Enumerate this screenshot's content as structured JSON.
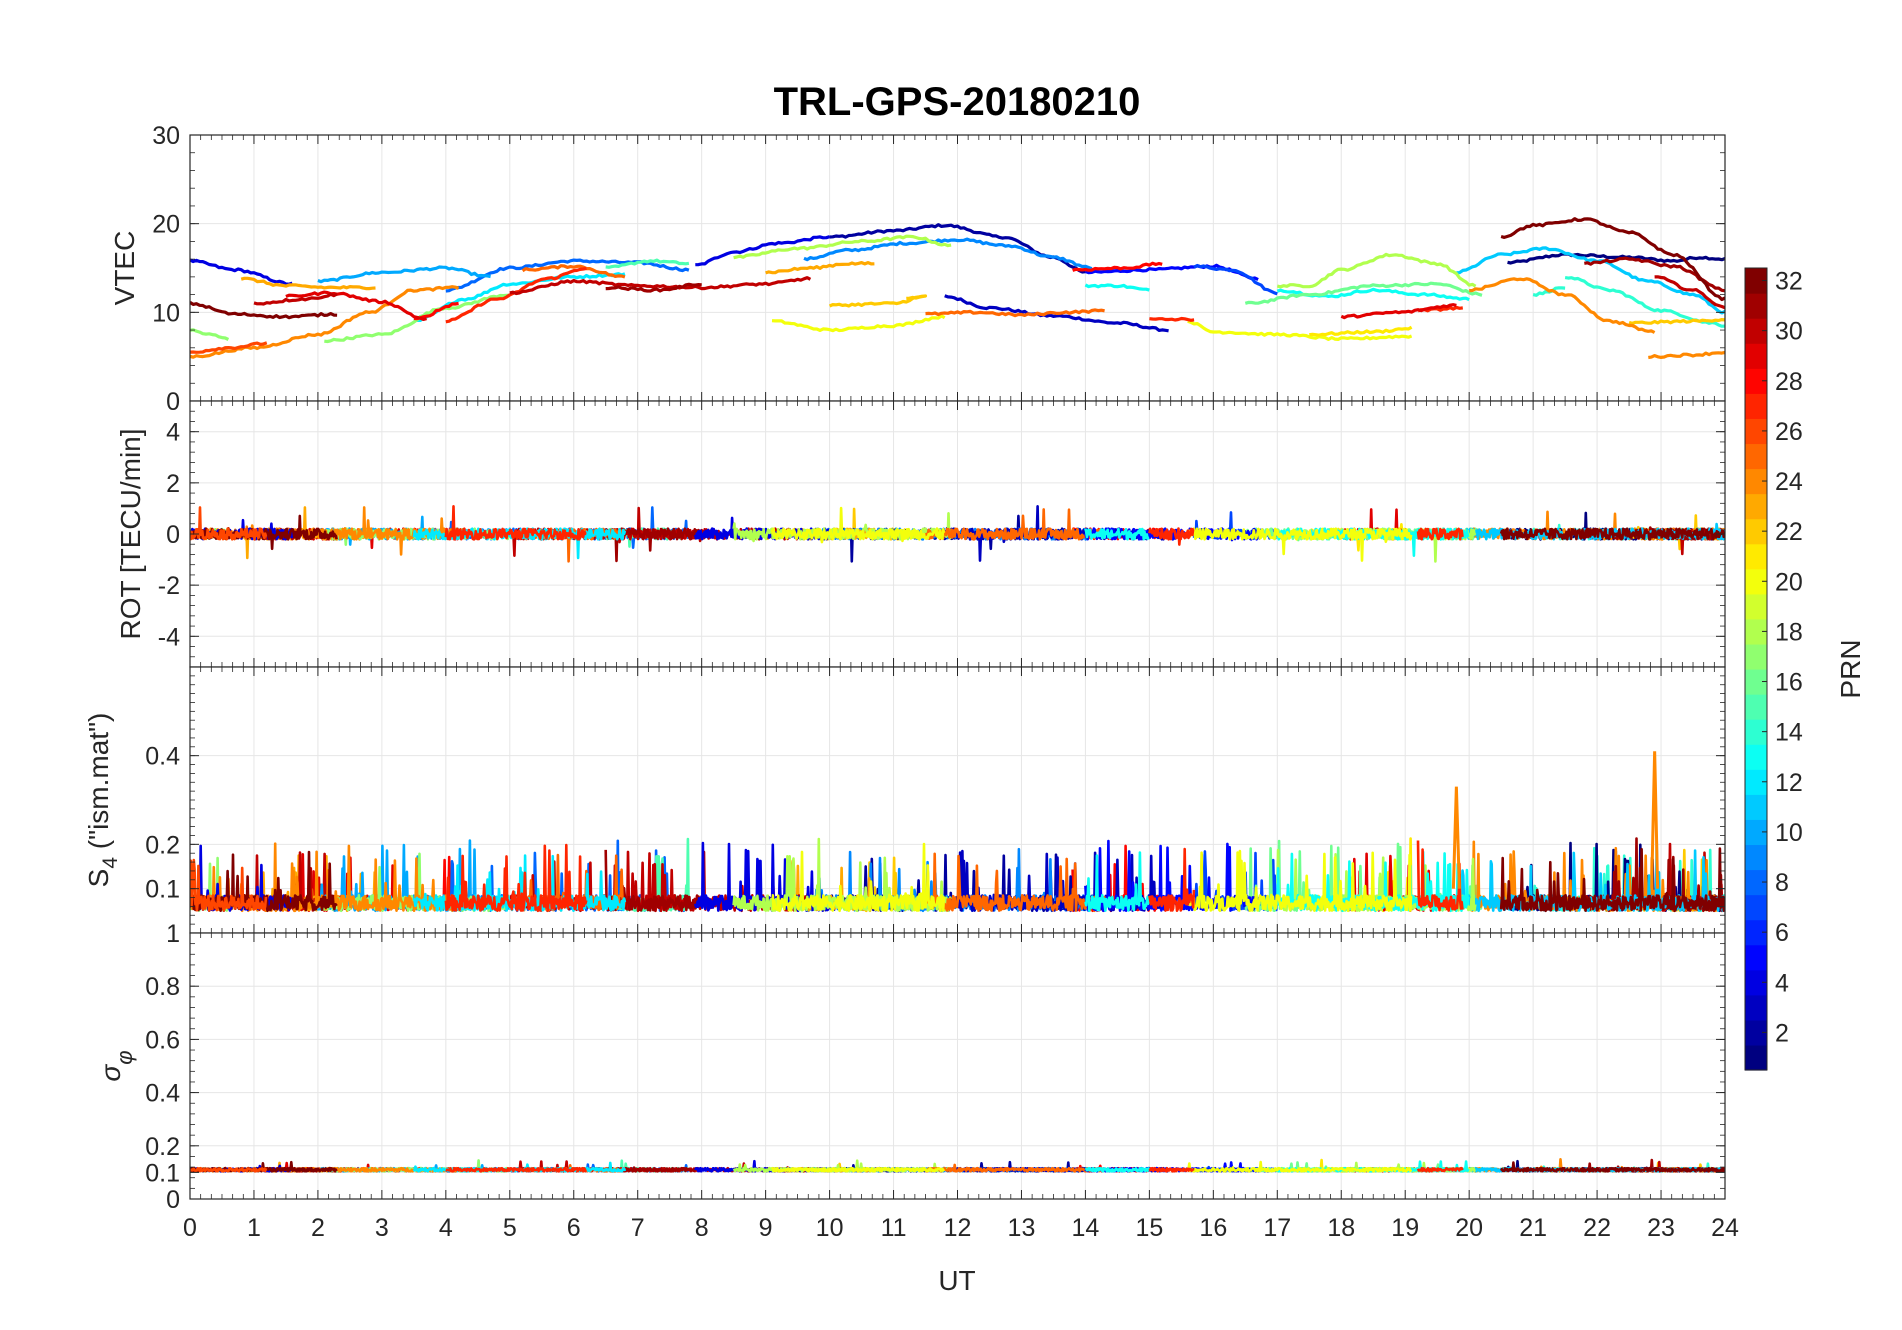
{
  "chart_data": {
    "type": "line",
    "title": "TRL-GPS-20180210",
    "xlabel": "UT",
    "xlim": [
      0,
      24
    ],
    "x_ticks": [
      0,
      1,
      2,
      3,
      4,
      5,
      6,
      7,
      8,
      9,
      10,
      11,
      12,
      13,
      14,
      15,
      16,
      17,
      18,
      19,
      20,
      21,
      22,
      23,
      24
    ],
    "grid": true,
    "colorbar": {
      "label": "PRN",
      "colormap": "jet",
      "range": [
        1,
        32
      ],
      "ticks": [
        2,
        4,
        6,
        8,
        10,
        12,
        14,
        16,
        18,
        20,
        22,
        24,
        26,
        28,
        30,
        32
      ]
    },
    "panels": [
      {
        "id": "vtec",
        "ylabel": "VTEC",
        "ylim": [
          0,
          30
        ],
        "y_ticks": [
          0,
          10,
          20,
          30
        ],
        "series": [
          {
            "prn": 1,
            "x": [
              20.6,
              21.5,
              22.5,
              23.2,
              23.6,
              24
            ],
            "y": [
              15.6,
              16.5,
              16.2,
              15.8,
              16.2,
              16.0
            ]
          },
          {
            "prn": 2,
            "x": [
              10.0,
              11.0,
              11.8,
              12.7,
              13.5,
              14.0
            ],
            "y": [
              18.5,
              19.2,
              19.8,
              18.5,
              16.2,
              14.5
            ]
          },
          {
            "prn": 3,
            "x": [
              11.8,
              12.5,
              13.5,
              14.5,
              15.3
            ],
            "y": [
              11.8,
              10.5,
              9.6,
              8.8,
              8.0
            ]
          },
          {
            "prn": 4,
            "x": [
              0,
              0.7,
              1.6
            ],
            "y": [
              15.8,
              14.8,
              13.2
            ]
          },
          {
            "prn": 4,
            "x": [
              7.9,
              8.5,
              9.2,
              10.0
            ],
            "y": [
              15.3,
              16.8,
              17.8,
              18.5
            ]
          },
          {
            "prn": 5,
            "x": [
              14.0,
              15.0,
              16.0,
              16.7
            ],
            "y": [
              14.5,
              14.8,
              15.2,
              13.8
            ]
          },
          {
            "prn": 7,
            "x": [
              15.7,
              16.3,
              17.0
            ],
            "y": [
              15.2,
              14.8,
              12.2
            ]
          },
          {
            "prn": 8,
            "x": [
              4.0,
              5.0,
              6.0,
              7.0,
              7.8
            ],
            "y": [
              12.5,
              15.0,
              15.8,
              15.6,
              14.8
            ]
          },
          {
            "prn": 9,
            "x": [
              9.6,
              10.3,
              11.2,
              12.0,
              12.8,
              13.5,
              14.1
            ],
            "y": [
              16.0,
              17.0,
              17.8,
              18.2,
              17.5,
              16.2,
              15.0
            ]
          },
          {
            "prn": 10,
            "x": [
              2.0,
              3.0,
              4.0,
              4.7
            ],
            "y": [
              13.5,
              14.5,
              15.0,
              14.0
            ]
          },
          {
            "prn": 11,
            "x": [
              19.8,
              20.5,
              21.2,
              22.0,
              22.8,
              23.5,
              24
            ],
            "y": [
              14.5,
              16.5,
              17.2,
              15.8,
              13.5,
              12.0,
              10.0
            ]
          },
          {
            "prn": 12,
            "x": [
              3.5,
              4.3,
              5.0,
              6.0,
              6.8
            ],
            "y": [
              9.0,
              11.5,
              13.2,
              14.0,
              14.3
            ]
          },
          {
            "prn": 13,
            "x": [
              14.0,
              14.5,
              15.0
            ],
            "y": [
              13.0,
              13.0,
              12.5
            ]
          },
          {
            "prn": 13,
            "x": [
              17.0,
              17.8,
              18.5,
              19.3,
              20.0
            ],
            "y": [
              12.5,
              11.8,
              12.5,
              12.0,
              11.5
            ]
          },
          {
            "prn": 14,
            "x": [
              21.5,
              22.2,
              23.0,
              23.8,
              24
            ],
            "y": [
              14.0,
              12.5,
              10.2,
              8.8,
              8.5
            ]
          },
          {
            "prn": 14,
            "x": [
              21.0,
              21.5
            ],
            "y": [
              12.0,
              12.8
            ]
          },
          {
            "prn": 15,
            "x": [
              6.5,
              7.2,
              7.8
            ],
            "y": [
              15.0,
              15.8,
              15.5
            ]
          },
          {
            "prn": 16,
            "x": [
              16.5,
              17.5,
              18.5,
              19.5,
              20.2
            ],
            "y": [
              11.0,
              12.0,
              13.0,
              13.2,
              12.0
            ]
          },
          {
            "prn": 17,
            "x": [
              0,
              0.3,
              0.6
            ],
            "y": [
              8.0,
              7.5,
              7.0
            ]
          },
          {
            "prn": 17,
            "x": [
              2.1,
              3.0,
              4.0,
              5.0
            ],
            "y": [
              6.8,
              7.5,
              10.5,
              12.0
            ]
          },
          {
            "prn": 18,
            "x": [
              8.5,
              9.5,
              10.5,
              11.3,
              11.9
            ],
            "y": [
              16.2,
              17.2,
              18.0,
              18.5,
              17.5
            ]
          },
          {
            "prn": 18,
            "x": [
              17.0,
              17.5,
              18.0,
              18.8,
              19.5,
              20.1
            ],
            "y": [
              13.0,
              13.0,
              14.8,
              16.5,
              15.5,
              13.0
            ]
          },
          {
            "prn": 20,
            "x": [
              9.1,
              10.0,
              11.0,
              11.8
            ],
            "y": [
              9.0,
              8.0,
              8.5,
              9.5
            ]
          },
          {
            "prn": 20,
            "x": [
              15.6,
              16.0,
              17.0,
              18.0,
              19.1
            ],
            "y": [
              9.0,
              7.8,
              7.5,
              7.0,
              7.3
            ]
          },
          {
            "prn": 21,
            "x": [
              17.5,
              18.5,
              19.1
            ],
            "y": [
              7.5,
              7.8,
              8.2
            ]
          },
          {
            "prn": 22,
            "x": [
              10.0,
              11.0,
              11.5,
              11.2
            ],
            "y": [
              10.8,
              11.0,
              11.8,
              11.5
            ]
          },
          {
            "prn": 22,
            "x": [
              22.5,
              23.5,
              24
            ],
            "y": [
              8.8,
              9.0,
              9.2
            ]
          },
          {
            "prn": 23,
            "x": [
              0.8,
              1.5,
              2.2,
              2.9
            ],
            "y": [
              13.8,
              13.0,
              12.8,
              12.8
            ]
          },
          {
            "prn": 23,
            "x": [
              9.0,
              9.7,
              10.3,
              10.7
            ],
            "y": [
              14.5,
              15.0,
              15.5,
              15.5
            ]
          },
          {
            "prn": 24,
            "x": [
              0,
              1.0,
              2.0,
              2.8,
              3.5,
              4.2
            ],
            "y": [
              5.0,
              6.0,
              7.5,
              10.0,
              12.5,
              12.8
            ]
          },
          {
            "prn": 24,
            "x": [
              20.0,
              20.8,
              21.5,
              22.2,
              22.9
            ],
            "y": [
              12.5,
              13.8,
              12.0,
              9.0,
              7.8
            ]
          },
          {
            "prn": 24,
            "x": [
              22.8,
              23.5,
              24
            ],
            "y": [
              5.0,
              5.2,
              5.5
            ]
          },
          {
            "prn": 25,
            "x": [
              11.5,
              12.3,
              13.0,
              13.7,
              14.3
            ],
            "y": [
              9.8,
              10.0,
              9.7,
              10.0,
              10.2
            ]
          },
          {
            "prn": 25,
            "x": [
              5.2,
              6.0,
              6.8
            ],
            "y": [
              14.8,
              15.2,
              14.0
            ]
          },
          {
            "prn": 26,
            "x": [
              0,
              0.6,
              1.2
            ],
            "y": [
              5.5,
              6.0,
              6.5
            ]
          },
          {
            "prn": 27,
            "x": [
              4.0,
              4.8,
              5.6,
              6.2
            ],
            "y": [
              9.0,
              11.5,
              13.8,
              15.0
            ]
          },
          {
            "prn": 27,
            "x": [
              15.0,
              15.7
            ],
            "y": [
              9.2,
              9.2
            ]
          },
          {
            "prn": 27,
            "x": [
              19.2,
              19.9
            ],
            "y": [
              10.2,
              10.5
            ]
          },
          {
            "prn": 28,
            "x": [
              3.5,
              4.2
            ],
            "y": [
              9.2,
              11.0
            ]
          },
          {
            "prn": 28,
            "x": [
              13.8,
              14.6,
              15.2
            ],
            "y": [
              14.8,
              15.0,
              15.5
            ]
          },
          {
            "prn": 29,
            "x": [
              1.5,
              2.2,
              3.0,
              3.7
            ],
            "y": [
              11.8,
              12.2,
              11.2,
              9.2
            ]
          },
          {
            "prn": 29,
            "x": [
              18.0,
              18.9,
              19.8
            ],
            "y": [
              9.5,
              10.0,
              10.8
            ]
          },
          {
            "prn": 30,
            "x": [
              1.0,
              1.8,
              2.3
            ],
            "y": [
              11.0,
              11.5,
              12.0
            ]
          },
          {
            "prn": 30,
            "x": [
              5.0,
              6.0,
              7.0,
              8.0,
              9.0,
              9.7
            ],
            "y": [
              12.2,
              13.5,
              13.0,
              12.8,
              13.2,
              13.8
            ]
          },
          {
            "prn": 30,
            "x": [
              22.9,
              23.5,
              24
            ],
            "y": [
              14.0,
              12.5,
              10.5
            ]
          },
          {
            "prn": 31,
            "x": [
              6.5,
              7.3,
              8.0
            ],
            "y": [
              12.8,
              12.5,
              13.2
            ]
          },
          {
            "prn": 31,
            "x": [
              21.8,
              22.5,
              23.2,
              24
            ],
            "y": [
              15.5,
              16.0,
              15.2,
              12.5
            ]
          },
          {
            "prn": 32,
            "x": [
              0,
              0.7,
              1.5,
              2.3
            ],
            "y": [
              11.0,
              9.8,
              9.5,
              9.8
            ]
          },
          {
            "prn": 32,
            "x": [
              20.5,
              21.0,
              21.8,
              22.5,
              23.2,
              24
            ],
            "y": [
              18.5,
              19.8,
              20.5,
              19.0,
              16.5,
              11.5
            ]
          }
        ]
      },
      {
        "id": "rot",
        "ylabel": "ROT [TECU/min]",
        "ylim": [
          -5.2,
          5.2
        ],
        "y_ticks": [
          -4,
          -2,
          0,
          2,
          4
        ],
        "baseline": 0.0,
        "noise_amplitude": 0.3,
        "max_spike": 1.1
      },
      {
        "id": "s4",
        "ylabel": "S4 (\"ism.mat\")",
        "ylabel_main": "S",
        "ylabel_sub": "4",
        "ylabel_suffix": " (\"ism.mat\")",
        "ylim": [
          0,
          0.6
        ],
        "y_ticks": [
          0.1,
          0.2,
          0.4
        ],
        "y_tick_extra": "1",
        "baseline_range": [
          0.05,
          0.1
        ],
        "typical_peak": 0.23,
        "spikes": [
          {
            "x": 19.8,
            "y": 0.33,
            "prn": 24
          },
          {
            "x": 22.9,
            "y": 0.41,
            "prn": 24
          }
        ]
      },
      {
        "id": "sigma_phi",
        "ylabel": "σφ",
        "ylabel_main": "σ",
        "ylabel_sub": "φ",
        "ylim": [
          0,
          1
        ],
        "y_ticks": [
          0,
          0.1,
          0.2,
          0.4,
          0.6,
          0.8
        ],
        "baseline": 0.11
      }
    ]
  }
}
